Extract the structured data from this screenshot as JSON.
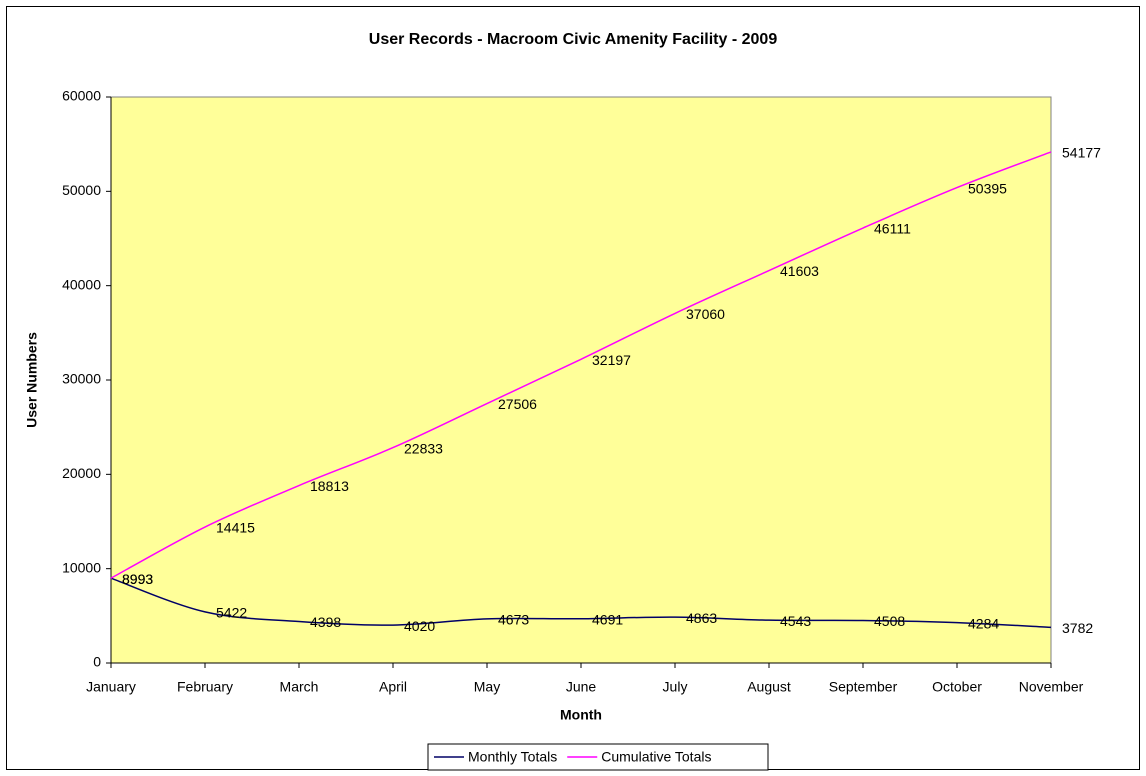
{
  "chart_data": {
    "type": "line",
    "title": "User Records - Macroom Civic Amenity Facility - 2009",
    "x_label": "Month",
    "y_label": "User Numbers",
    "categories": [
      "January",
      "February",
      "March",
      "April",
      "May",
      "June",
      "July",
      "August",
      "September",
      "October",
      "November"
    ],
    "series": [
      {
        "name": "Monthly Totals",
        "color": "#000066",
        "values": [
          8993,
          5422,
          4398,
          4020,
          4673,
          4691,
          4863,
          4543,
          4508,
          4284,
          3782
        ]
      },
      {
        "name": "Cumulative Totals",
        "color": "#ff00ff",
        "values": [
          8993,
          14415,
          18813,
          22833,
          27506,
          32197,
          37060,
          41603,
          46111,
          50395,
          54177
        ]
      }
    ],
    "ylim": [
      0,
      60000
    ],
    "yticks": [
      0,
      10000,
      20000,
      30000,
      40000,
      50000,
      60000
    ],
    "grid": false,
    "legend": "bottom",
    "plot_background": "#ffff99"
  }
}
